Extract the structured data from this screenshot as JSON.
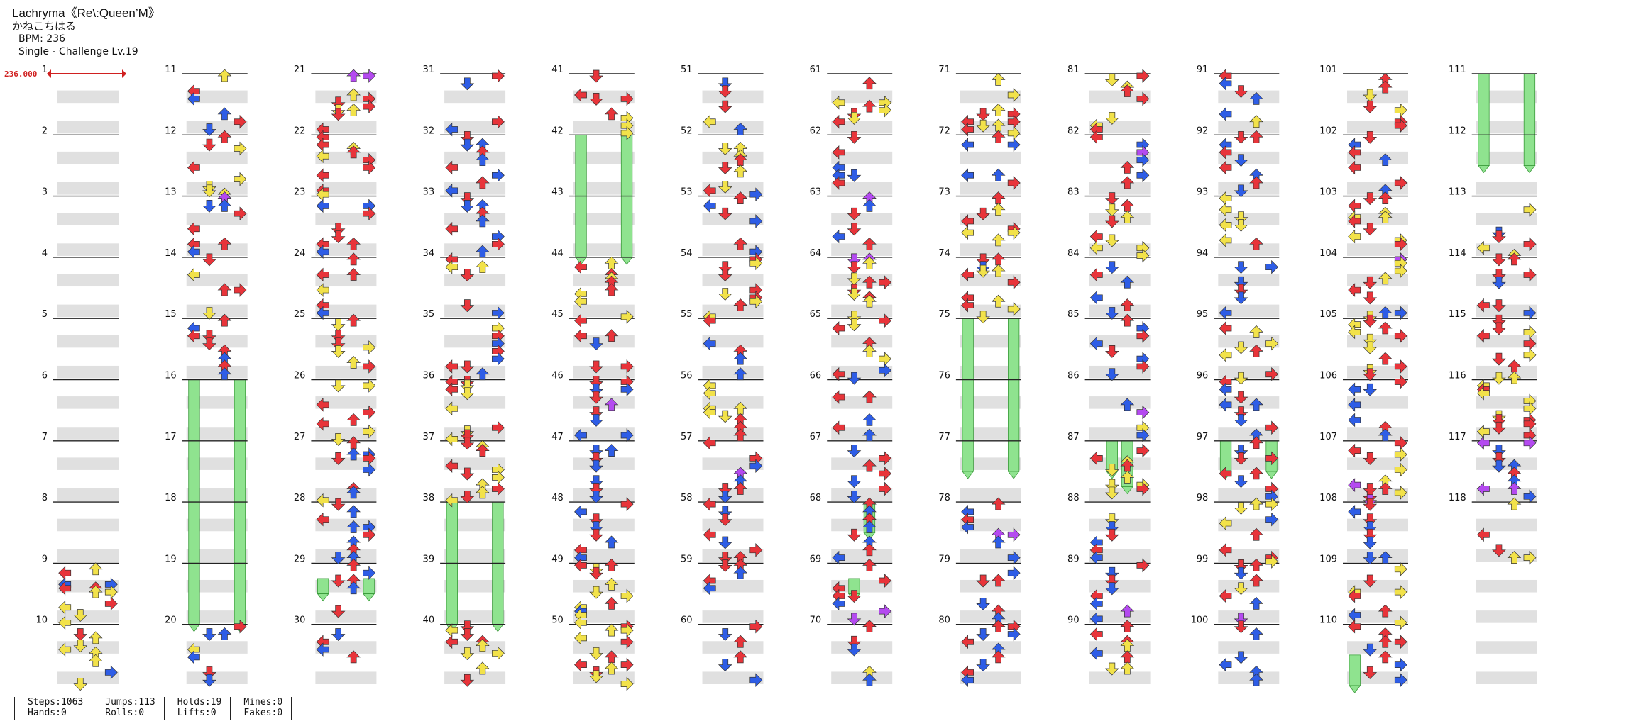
{
  "song": {
    "title": "Lachryma《Re\\:Queen’M》",
    "artist": "かねこちはる",
    "bpm_label": "BPM: 236",
    "difficulty_label": "Single - Challenge Lv.19"
  },
  "bpm_marker": "236.000",
  "measure_count": 118,
  "stats": {
    "steps": "Steps:1063",
    "jumps": "Jumps:113",
    "holds": "Holds:19",
    "mines": "Mines:0",
    "hands": "Hands:0",
    "rolls": "Rolls:0",
    "lifts": "Lifts:0",
    "fakes": "Fakes:0"
  },
  "colors": {
    "red_note": "#e8343a",
    "blue_note": "#2e5de6",
    "purple_note": "#b44af0",
    "yellow_note": "#f2e24a",
    "hold_body": "#8fe38f",
    "shaded_row": "#e0e0e0",
    "bpm_marker": "#d02020"
  },
  "holds": [
    {
      "lane": 0,
      "start": 16.0,
      "end": 20.0
    },
    {
      "lane": 3,
      "start": 16.0,
      "end": 20.0
    },
    {
      "lane": 0,
      "start": 29.25,
      "end": 29.5
    },
    {
      "lane": 3,
      "start": 29.25,
      "end": 29.5
    },
    {
      "lane": 0,
      "start": 38.0,
      "end": 40.0
    },
    {
      "lane": 3,
      "start": 38.0,
      "end": 40.0
    },
    {
      "lane": 0,
      "start": 42.0,
      "end": 44.0
    },
    {
      "lane": 3,
      "start": 42.0,
      "end": 44.0
    },
    {
      "lane": 2,
      "start": 68.0,
      "end": 68.5
    },
    {
      "lane": 1,
      "start": 69.25,
      "end": 69.5
    },
    {
      "lane": 0,
      "start": 75.0,
      "end": 77.5
    },
    {
      "lane": 3,
      "start": 75.0,
      "end": 77.5
    },
    {
      "lane": 1,
      "start": 87.0,
      "end": 87.5
    },
    {
      "lane": 2,
      "start": 87.0,
      "end": 87.75
    },
    {
      "lane": 0,
      "start": 97.0,
      "end": 97.5
    },
    {
      "lane": 3,
      "start": 97.0,
      "end": 97.5
    },
    {
      "lane": 0,
      "start": 111.0,
      "end": 112.5
    },
    {
      "lane": 3,
      "start": 111.0,
      "end": 112.5
    },
    {
      "lane": 0,
      "start": 110.5,
      "end": 111.25
    }
  ]
}
